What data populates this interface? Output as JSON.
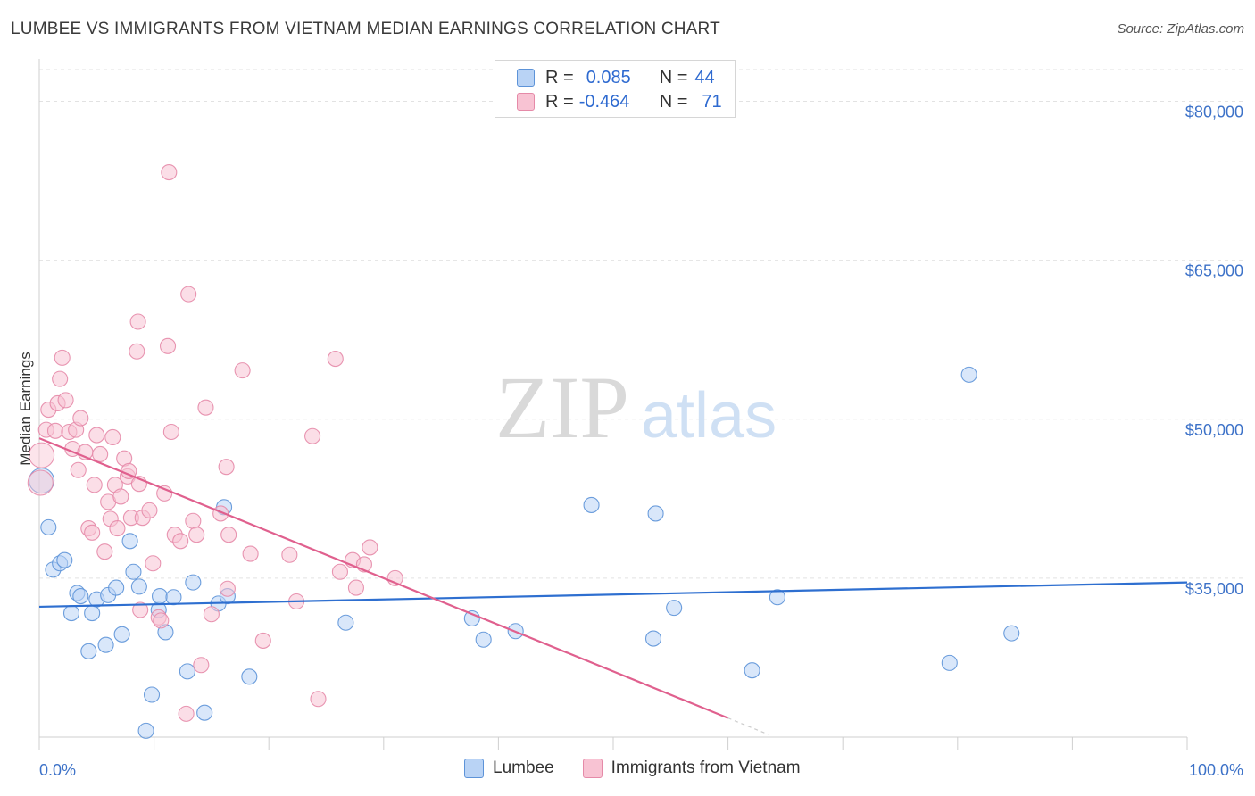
{
  "header": {
    "title": "LUMBEE VS IMMIGRANTS FROM VIETNAM MEDIAN EARNINGS CORRELATION CHART",
    "source": "Source: ZipAtlas.com"
  },
  "watermark": {
    "zip": "ZIP",
    "atlas": "atlas"
  },
  "legend": {
    "rows": [
      {
        "r_label": "R = ",
        "r_value": "0.085",
        "n_label": "N = ",
        "n_value": "44"
      },
      {
        "r_label": "R = ",
        "r_value": "-0.464",
        "n_label": "N = ",
        "n_value": "71"
      }
    ]
  },
  "colors": {
    "lumbee_fill": "#b9d3f5",
    "lumbee_stroke": "#5d93d8",
    "lumbee_line": "#2e6fd0",
    "vietnam_fill": "#f8c3d3",
    "vietnam_stroke": "#e58aa8",
    "vietnam_line": "#e0608e",
    "axis_text": "#3d72c8"
  },
  "chart_data": {
    "type": "scatter",
    "title": "LUMBEE VS IMMIGRANTS FROM VIETNAM MEDIAN EARNINGS CORRELATION CHART",
    "xlabel": "",
    "ylabel": "Median Earnings",
    "xlim": [
      0,
      100
    ],
    "ylim": [
      20000,
      84000
    ],
    "x_tick_labels": [
      "0.0%",
      "100.0%"
    ],
    "y_ticks": [
      {
        "value": 80000,
        "label": "$80,000"
      },
      {
        "value": 65000,
        "label": "$65,000"
      },
      {
        "value": 50000,
        "label": "$50,000"
      },
      {
        "value": 35000,
        "label": "$35,000"
      }
    ],
    "grid": true,
    "legend_position": "bottom",
    "series": [
      {
        "name": "Lumbee",
        "r": 0.085,
        "n": 44,
        "trend": {
          "x": [
            0,
            100
          ],
          "y": [
            32300,
            34600
          ]
        },
        "points": [
          [
            0.2,
            44200
          ],
          [
            0.8,
            39800
          ],
          [
            1.2,
            35800
          ],
          [
            1.8,
            36400
          ],
          [
            2.2,
            36700
          ],
          [
            2.8,
            31700
          ],
          [
            3.3,
            33600
          ],
          [
            3.6,
            33300
          ],
          [
            4.3,
            28100
          ],
          [
            4.6,
            31700
          ],
          [
            5.0,
            33000
          ],
          [
            5.8,
            28700
          ],
          [
            6.0,
            33400
          ],
          [
            6.7,
            34100
          ],
          [
            7.2,
            29700
          ],
          [
            7.9,
            38500
          ],
          [
            8.2,
            35600
          ],
          [
            8.7,
            34200
          ],
          [
            9.3,
            20600
          ],
          [
            9.8,
            24000
          ],
          [
            10.4,
            32000
          ],
          [
            10.5,
            33300
          ],
          [
            11.0,
            29900
          ],
          [
            11.7,
            33200
          ],
          [
            12.9,
            26200
          ],
          [
            13.4,
            34600
          ],
          [
            14.4,
            22300
          ],
          [
            15.6,
            32600
          ],
          [
            16.1,
            41700
          ],
          [
            16.4,
            33300
          ],
          [
            18.3,
            25700
          ],
          [
            26.7,
            30800
          ],
          [
            37.7,
            31200
          ],
          [
            38.7,
            29200
          ],
          [
            41.5,
            30000
          ],
          [
            48.1,
            41900
          ],
          [
            53.5,
            29300
          ],
          [
            53.7,
            41100
          ],
          [
            55.3,
            32200
          ],
          [
            62.1,
            26300
          ],
          [
            64.3,
            33200
          ],
          [
            79.3,
            27000
          ],
          [
            81.0,
            54200
          ],
          [
            84.7,
            29800
          ]
        ]
      },
      {
        "name": "Immigrants from Vietnam",
        "r": -0.464,
        "n": 71,
        "trend": {
          "x": [
            0,
            60
          ],
          "y": [
            48200,
            21800
          ]
        },
        "points": [
          [
            0.1,
            44000
          ],
          [
            0.2,
            46600
          ],
          [
            0.6,
            49000
          ],
          [
            0.8,
            50900
          ],
          [
            1.4,
            48900
          ],
          [
            1.6,
            51500
          ],
          [
            1.8,
            53800
          ],
          [
            2.0,
            55800
          ],
          [
            2.3,
            51800
          ],
          [
            2.6,
            48800
          ],
          [
            2.9,
            47200
          ],
          [
            3.2,
            49000
          ],
          [
            3.4,
            45200
          ],
          [
            3.6,
            50100
          ],
          [
            4.0,
            46900
          ],
          [
            4.3,
            39700
          ],
          [
            4.6,
            39300
          ],
          [
            4.8,
            43800
          ],
          [
            5.0,
            48500
          ],
          [
            5.3,
            46700
          ],
          [
            5.7,
            37500
          ],
          [
            6.0,
            42200
          ],
          [
            6.2,
            40600
          ],
          [
            6.4,
            48300
          ],
          [
            6.6,
            43800
          ],
          [
            6.8,
            39700
          ],
          [
            7.1,
            42700
          ],
          [
            7.4,
            46300
          ],
          [
            7.7,
            44600
          ],
          [
            7.8,
            45100
          ],
          [
            8.0,
            40700
          ],
          [
            8.5,
            56400
          ],
          [
            8.6,
            59200
          ],
          [
            8.7,
            43900
          ],
          [
            8.8,
            32000
          ],
          [
            9.0,
            40700
          ],
          [
            9.6,
            41400
          ],
          [
            9.9,
            36400
          ],
          [
            10.4,
            31300
          ],
          [
            10.6,
            31000
          ],
          [
            10.9,
            43000
          ],
          [
            11.2,
            56900
          ],
          [
            11.3,
            73300
          ],
          [
            11.5,
            48800
          ],
          [
            11.8,
            39100
          ],
          [
            12.3,
            38500
          ],
          [
            12.8,
            22200
          ],
          [
            13.0,
            61800
          ],
          [
            13.4,
            40400
          ],
          [
            13.7,
            39100
          ],
          [
            14.1,
            26800
          ],
          [
            14.5,
            51100
          ],
          [
            15.0,
            31600
          ],
          [
            15.8,
            41100
          ],
          [
            16.3,
            45500
          ],
          [
            16.4,
            34000
          ],
          [
            16.5,
            39100
          ],
          [
            17.7,
            54600
          ],
          [
            18.4,
            37300
          ],
          [
            19.5,
            29100
          ],
          [
            21.8,
            37200
          ],
          [
            22.4,
            32800
          ],
          [
            23.8,
            48400
          ],
          [
            24.3,
            23600
          ],
          [
            25.8,
            55700
          ],
          [
            26.2,
            35600
          ],
          [
            27.3,
            36700
          ],
          [
            27.6,
            34100
          ],
          [
            28.3,
            36300
          ],
          [
            28.8,
            37900
          ],
          [
            31.0,
            35000
          ]
        ]
      }
    ]
  }
}
